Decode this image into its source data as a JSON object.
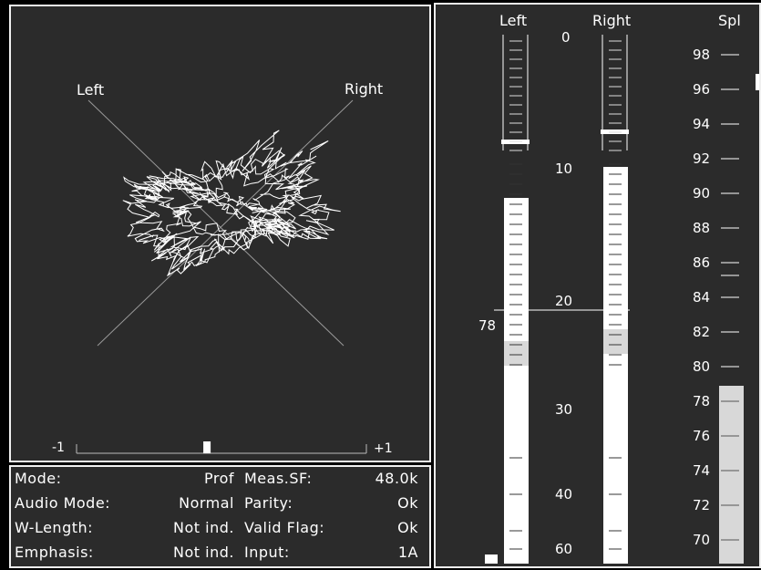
{
  "goniometer": {
    "label_left": "Left",
    "label_right": "Right",
    "scale_min": "-1",
    "scale_max": "+1",
    "balance": 0.45
  },
  "status": {
    "rows": [
      {
        "label": "Mode:",
        "value": "Prof",
        "label2": "Meas.SF:",
        "value2": "48.0k"
      },
      {
        "label": "Audio Mode:",
        "value": "Normal",
        "label2": "Parity:",
        "value2": "Ok"
      },
      {
        "label": "W-Length:",
        "value": "Not ind.",
        "label2": "Valid Flag:",
        "value2": "Ok"
      },
      {
        "label": "Emphasis:",
        "value": "Not ind.",
        "label2": "Input:",
        "value2": "1A"
      }
    ]
  },
  "meters": {
    "left_title": "Left",
    "right_title": "Right",
    "spl_title": "Spl",
    "db_scale": [
      "0",
      "10",
      "20",
      "30",
      "40",
      "60"
    ],
    "reference_label": "78",
    "spl_scale": [
      "98",
      "96",
      "94",
      "92",
      "90",
      "88",
      "86",
      "84",
      "82",
      "80",
      "78",
      "76",
      "74",
      "72",
      "70"
    ],
    "colors": {
      "background": "#2b2b2b",
      "bar": "#ffffff",
      "highlight": "#d8d8d8"
    }
  }
}
